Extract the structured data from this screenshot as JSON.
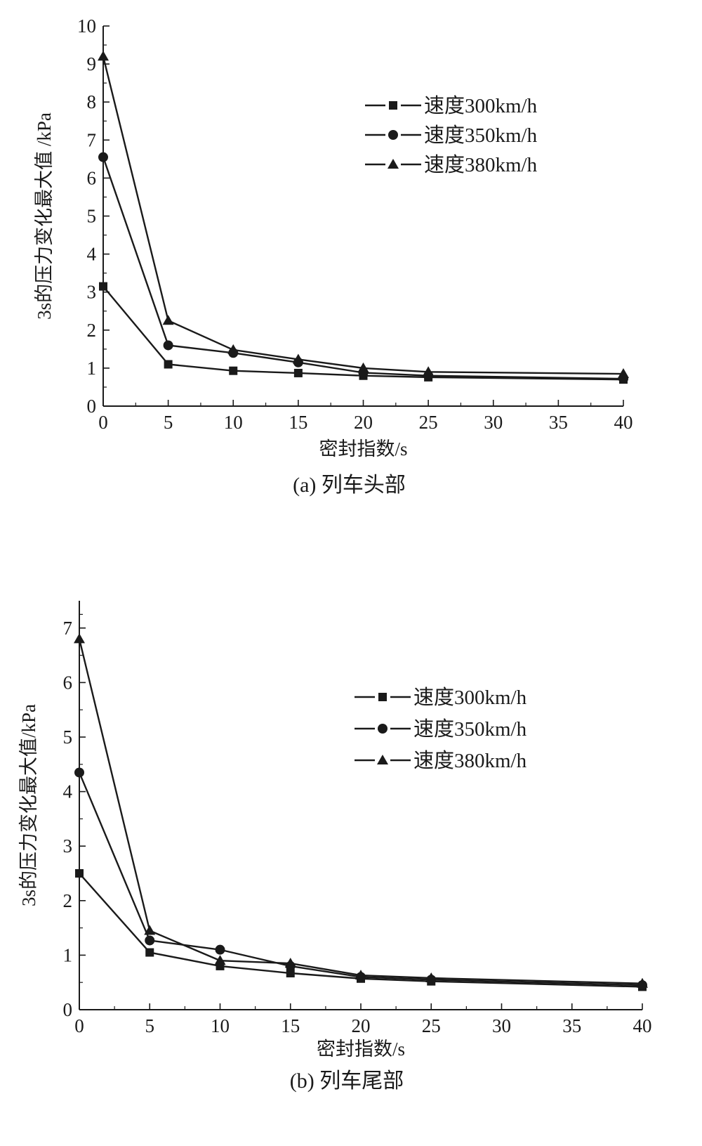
{
  "chart_data": [
    {
      "type": "line",
      "caption": "(a) 列车头部",
      "xlabel": "密封指数/s",
      "ylabel": "3s的压力变化最大值 /kPa",
      "xlim": [
        0,
        40
      ],
      "ylim": [
        0,
        10
      ],
      "xticks": [
        0,
        5,
        10,
        15,
        20,
        25,
        30,
        35,
        40
      ],
      "yticks": [
        0,
        1,
        2,
        3,
        4,
        5,
        6,
        7,
        8,
        9,
        10
      ],
      "x": [
        0,
        5,
        10,
        15,
        20,
        25,
        40
      ],
      "series": [
        {
          "name": "速度300km/h",
          "marker": "square",
          "values": [
            3.15,
            1.1,
            0.93,
            0.87,
            0.8,
            0.76,
            0.7
          ]
        },
        {
          "name": "速度350km/h",
          "marker": "circle",
          "values": [
            6.55,
            1.6,
            1.4,
            1.15,
            0.88,
            0.8,
            0.72
          ]
        },
        {
          "name": "速度380km/h",
          "marker": "triangle",
          "values": [
            9.2,
            2.25,
            1.48,
            1.23,
            1.0,
            0.9,
            0.85
          ]
        }
      ],
      "legend_position": "top-right"
    },
    {
      "type": "line",
      "caption": "(b) 列车尾部",
      "xlabel": "密封指数/s",
      "ylabel": "3s的压力变化最大值/kPa",
      "xlim": [
        0,
        40
      ],
      "ylim": [
        0,
        7.5
      ],
      "xticks": [
        0,
        5,
        10,
        15,
        20,
        25,
        30,
        35,
        40
      ],
      "yticks": [
        0,
        1,
        2,
        3,
        4,
        5,
        6,
        7
      ],
      "x": [
        0,
        5,
        10,
        15,
        20,
        25,
        40
      ],
      "series": [
        {
          "name": "速度300km/h",
          "marker": "square",
          "values": [
            2.5,
            1.05,
            0.8,
            0.67,
            0.57,
            0.52,
            0.42
          ]
        },
        {
          "name": "速度350km/h",
          "marker": "circle",
          "values": [
            4.35,
            1.27,
            1.1,
            0.8,
            0.6,
            0.55,
            0.45
          ]
        },
        {
          "name": "速度380km/h",
          "marker": "triangle",
          "values": [
            6.8,
            1.45,
            0.9,
            0.85,
            0.63,
            0.58,
            0.48
          ]
        }
      ],
      "legend_position": "top-right"
    }
  ]
}
